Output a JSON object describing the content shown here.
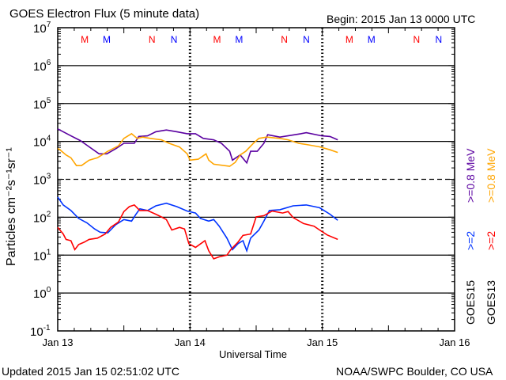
{
  "chart_data": {
    "type": "line",
    "title": "GOES Electron Flux (5 minute data)",
    "begin": "Begin: 2015 Jan 13 0000 UTC",
    "xlabel": "Universal Time",
    "ylabel": "Particles cm⁻²s⁻¹sr⁻¹",
    "x_unit": "hours since 2015 Jan 13 00:00 UTC",
    "xlim": [
      0,
      72
    ],
    "x_ticks": [
      {
        "h": 0,
        "label": "Jan 13"
      },
      {
        "h": 24,
        "label": "Jan 14"
      },
      {
        "h": 48,
        "label": "Jan 15"
      },
      {
        "h": 72,
        "label": "Jan 16"
      }
    ],
    "y_scale": "log",
    "ylim": [
      0.1,
      10000000
    ],
    "y_ticks": [
      {
        "exp": "7"
      },
      {
        "exp": "6"
      },
      {
        "exp": "5"
      },
      {
        "exp": "4"
      },
      {
        "exp": "3"
      },
      {
        "exp": "2"
      },
      {
        "exp": "1"
      },
      {
        "exp": "0"
      },
      {
        "exp": "-1"
      }
    ],
    "dashed_threshold": 1000,
    "markers": [
      {
        "label": "M",
        "h": 4.9,
        "color": "#ff0000"
      },
      {
        "label": "M",
        "h": 8.9,
        "color": "#0000ff"
      },
      {
        "label": "N",
        "h": 17.1,
        "color": "#ff0000"
      },
      {
        "label": "N",
        "h": 21.1,
        "color": "#0000ff"
      },
      {
        "label": "M",
        "h": 28.9,
        "color": "#ff0000"
      },
      {
        "label": "M",
        "h": 32.9,
        "color": "#0000ff"
      },
      {
        "label": "N",
        "h": 41.1,
        "color": "#ff0000"
      },
      {
        "label": "N",
        "h": 45.1,
        "color": "#0000ff"
      },
      {
        "label": "M",
        "h": 52.9,
        "color": "#ff0000"
      },
      {
        "label": "M",
        "h": 56.9,
        "color": "#0000ff"
      },
      {
        "label": "N",
        "h": 65.1,
        "color": "#ff0000"
      },
      {
        "label": "N",
        "h": 69.1,
        "color": "#0000ff"
      }
    ],
    "series": [
      {
        "name": "GOES15 >=0.8 MeV",
        "color": "#5a00a0",
        "points": [
          [
            0,
            21400
          ],
          [
            2.4,
            14000
          ],
          [
            4.1,
            10500
          ],
          [
            5.3,
            7900
          ],
          [
            7.5,
            4700
          ],
          [
            8.9,
            4700
          ],
          [
            10.6,
            6500
          ],
          [
            12.0,
            8900
          ],
          [
            13.9,
            8900
          ],
          [
            14.7,
            13500
          ],
          [
            16.3,
            14000
          ],
          [
            17.8,
            18000
          ],
          [
            19.7,
            20000
          ],
          [
            21.6,
            18000
          ],
          [
            23.5,
            16000
          ],
          [
            25.0,
            16000
          ],
          [
            26.4,
            12000
          ],
          [
            28.3,
            11000
          ],
          [
            29.7,
            8900
          ],
          [
            31.2,
            5500
          ],
          [
            31.7,
            3200
          ],
          [
            33.1,
            4400
          ],
          [
            34.3,
            2700
          ],
          [
            35.0,
            5500
          ],
          [
            36.2,
            5500
          ],
          [
            37.4,
            8900
          ],
          [
            38.1,
            15000
          ],
          [
            40.3,
            13000
          ],
          [
            44.1,
            16000
          ],
          [
            45.1,
            17000
          ],
          [
            47.9,
            14000
          ],
          [
            49.4,
            13500
          ],
          [
            50.8,
            11000
          ]
        ]
      },
      {
        "name": "GOES13 >=0.8 MeV",
        "color": "#ffa500",
        "points": [
          [
            0,
            6500
          ],
          [
            0.3,
            6200
          ],
          [
            1.5,
            4400
          ],
          [
            2.4,
            3700
          ],
          [
            3.4,
            2300
          ],
          [
            4.3,
            2300
          ],
          [
            5.7,
            3200
          ],
          [
            7.2,
            3700
          ],
          [
            9.1,
            5500
          ],
          [
            11.0,
            7600
          ],
          [
            12.0,
            12000
          ],
          [
            13.4,
            16000
          ],
          [
            14.4,
            12000
          ],
          [
            15.4,
            13000
          ],
          [
            16.8,
            12000
          ],
          [
            18.8,
            11000
          ],
          [
            20.2,
            8900
          ],
          [
            22.1,
            7100
          ],
          [
            23.5,
            4700
          ],
          [
            24.0,
            3200
          ],
          [
            25.5,
            3400
          ],
          [
            26.9,
            4700
          ],
          [
            27.4,
            3200
          ],
          [
            28.3,
            2500
          ],
          [
            31.2,
            2200
          ],
          [
            32.2,
            2800
          ],
          [
            33.1,
            4400
          ],
          [
            34.1,
            5500
          ],
          [
            35.5,
            8900
          ],
          [
            36.5,
            12000
          ],
          [
            37.9,
            13000
          ],
          [
            40.3,
            12000
          ],
          [
            41.8,
            11000
          ],
          [
            43.7,
            8900
          ],
          [
            45.1,
            8300
          ],
          [
            47.5,
            7200
          ],
          [
            49.4,
            6000
          ],
          [
            50.8,
            5100
          ]
        ]
      },
      {
        "name": "GOES15 >=2 MeV",
        "color": "#0033ff",
        "points": [
          [
            0,
            340
          ],
          [
            1.0,
            210
          ],
          [
            2.4,
            150
          ],
          [
            3.8,
            93
          ],
          [
            5.3,
            71
          ],
          [
            6.7,
            49
          ],
          [
            7.7,
            40
          ],
          [
            9.1,
            39
          ],
          [
            10.5,
            63
          ],
          [
            12.0,
            87
          ],
          [
            13.4,
            79
          ],
          [
            14.2,
            120
          ],
          [
            14.9,
            166
          ],
          [
            16.3,
            150
          ],
          [
            17.8,
            200
          ],
          [
            19.7,
            234
          ],
          [
            21.6,
            190
          ],
          [
            23.5,
            145
          ],
          [
            25.0,
            129
          ],
          [
            25.9,
            93
          ],
          [
            27.4,
            79
          ],
          [
            28.3,
            87
          ],
          [
            29.3,
            58
          ],
          [
            30.7,
            28
          ],
          [
            31.7,
            14
          ],
          [
            32.7,
            20
          ],
          [
            33.6,
            24
          ],
          [
            34.3,
            13
          ],
          [
            35.0,
            28
          ],
          [
            36.5,
            46
          ],
          [
            37.4,
            79
          ],
          [
            38.4,
            150
          ],
          [
            40.3,
            158
          ],
          [
            42.7,
            200
          ],
          [
            45.1,
            210
          ],
          [
            47.5,
            178
          ],
          [
            49.4,
            120
          ],
          [
            50.8,
            83
          ]
        ]
      },
      {
        "name": "GOES13 >=2 MeV",
        "color": "#ff0000",
        "points": [
          [
            0,
            54
          ],
          [
            1.0,
            36
          ],
          [
            1.5,
            26
          ],
          [
            2.4,
            24
          ],
          [
            3.1,
            14
          ],
          [
            3.8,
            19
          ],
          [
            4.8,
            22
          ],
          [
            5.7,
            26
          ],
          [
            7.2,
            28
          ],
          [
            8.6,
            36
          ],
          [
            9.6,
            54
          ],
          [
            11.0,
            74
          ],
          [
            12.0,
            141
          ],
          [
            13.0,
            190
          ],
          [
            13.9,
            210
          ],
          [
            14.9,
            150
          ],
          [
            16.3,
            150
          ],
          [
            17.8,
            120
          ],
          [
            18.8,
            102
          ],
          [
            19.7,
            87
          ],
          [
            20.7,
            46
          ],
          [
            22.1,
            54
          ],
          [
            23.0,
            49
          ],
          [
            23.8,
            20
          ],
          [
            25.0,
            16
          ],
          [
            26.7,
            24
          ],
          [
            27.4,
            13
          ],
          [
            28.3,
            8
          ],
          [
            29.3,
            9
          ],
          [
            30.7,
            10
          ],
          [
            31.4,
            14
          ],
          [
            32.7,
            22
          ],
          [
            33.6,
            33
          ],
          [
            35.0,
            36
          ],
          [
            36.0,
            102
          ],
          [
            37.4,
            110
          ],
          [
            38.9,
            145
          ],
          [
            40.8,
            129
          ],
          [
            41.8,
            141
          ],
          [
            42.7,
            98
          ],
          [
            44.6,
            68
          ],
          [
            46.5,
            58
          ],
          [
            47.5,
            46
          ],
          [
            48.9,
            34
          ],
          [
            50.8,
            26
          ]
        ]
      }
    ],
    "legend": [
      {
        "text": ">=0.8 MeV",
        "color": "#5a00a0"
      },
      {
        "text": ">=0.8 MeV",
        "color": "#ffa500"
      },
      {
        "text": ">=2",
        "color": "#0033ff"
      },
      {
        "text": ">=2",
        "color": "#ff0000"
      },
      {
        "text": "GOES15",
        "color": "#000000"
      },
      {
        "text": "GOES13",
        "color": "#000000"
      }
    ]
  },
  "footer": {
    "updated": "Updated 2015 Jan 15 02:51:02 UTC",
    "credit": "NOAA/SWPC Boulder, CO USA"
  }
}
